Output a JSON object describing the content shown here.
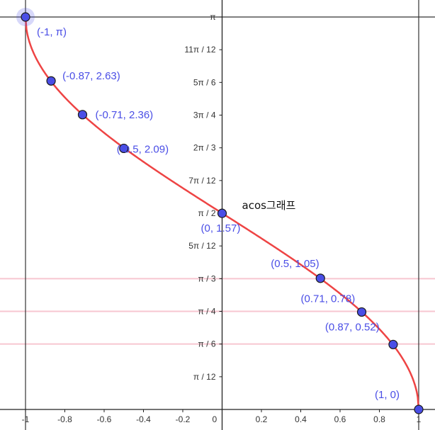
{
  "chart_data": {
    "type": "line",
    "title": "acos그래프",
    "function": "acos(x)",
    "xlim": [
      -1,
      1
    ],
    "ylim": [
      0,
      3.14159
    ],
    "grid": true,
    "x_ticks": [
      {
        "value": -1,
        "label": "-1"
      },
      {
        "value": -0.8,
        "label": "-0.8"
      },
      {
        "value": -0.6,
        "label": "-0.6"
      },
      {
        "value": -0.4,
        "label": "-0.4"
      },
      {
        "value": -0.2,
        "label": "-0.2"
      },
      {
        "value": 0,
        "label": "0"
      },
      {
        "value": 0.2,
        "label": "0.2"
      },
      {
        "value": 0.4,
        "label": "0.4"
      },
      {
        "value": 0.6,
        "label": "0.6"
      },
      {
        "value": 0.8,
        "label": "0.8"
      },
      {
        "value": 1,
        "label": "1"
      }
    ],
    "y_ticks": [
      {
        "value": 3.14159,
        "label": "π"
      },
      {
        "value": 2.87979,
        "label": "11π / 12"
      },
      {
        "value": 2.61799,
        "label": "5π / 6"
      },
      {
        "value": 2.35619,
        "label": "3π / 4"
      },
      {
        "value": 2.0944,
        "label": "2π / 3"
      },
      {
        "value": 1.8326,
        "label": "7π / 12"
      },
      {
        "value": 1.5708,
        "label": "π / 2"
      },
      {
        "value": 1.309,
        "label": "5π / 12"
      },
      {
        "value": 1.0472,
        "label": "π / 3"
      },
      {
        "value": 0.7854,
        "label": "π / 4"
      },
      {
        "value": 0.5236,
        "label": "π / 6"
      },
      {
        "value": 0.2618,
        "label": "π / 12"
      }
    ],
    "highlight_lines": [
      {
        "value": 1.0472,
        "color": "#f7c6d0"
      },
      {
        "value": 0.7854,
        "color": "#f7c6d0"
      },
      {
        "value": 0.5236,
        "color": "#f7c6d0"
      }
    ],
    "points": [
      {
        "x": -1,
        "y": 3.14159,
        "label": "(-1, π)",
        "highlight": true
      },
      {
        "x": -0.87,
        "y": 2.63,
        "label": "(-0.87, 2.63)"
      },
      {
        "x": -0.71,
        "y": 2.36,
        "label": "(-0.71, 2.36)"
      },
      {
        "x": -0.5,
        "y": 2.09,
        "label": "(-0.5, 2.09)"
      },
      {
        "x": 0,
        "y": 1.57,
        "label": "(0, 1.57)"
      },
      {
        "x": 0.5,
        "y": 1.05,
        "label": "(0.5, 1.05)"
      },
      {
        "x": 0.71,
        "y": 0.78,
        "label": "(0.71, 0.78)"
      },
      {
        "x": 0.87,
        "y": 0.52,
        "label": "(0.87, 0.52)"
      },
      {
        "x": 1,
        "y": 0,
        "label": "(1, 0)"
      }
    ],
    "colors": {
      "curve": "#ee4444",
      "point_fill": "#4a4ee6",
      "point_label": "#4a4ee6",
      "axis": "#222222",
      "grid": "#333333",
      "highlight_line": "#f7c6d0"
    }
  }
}
